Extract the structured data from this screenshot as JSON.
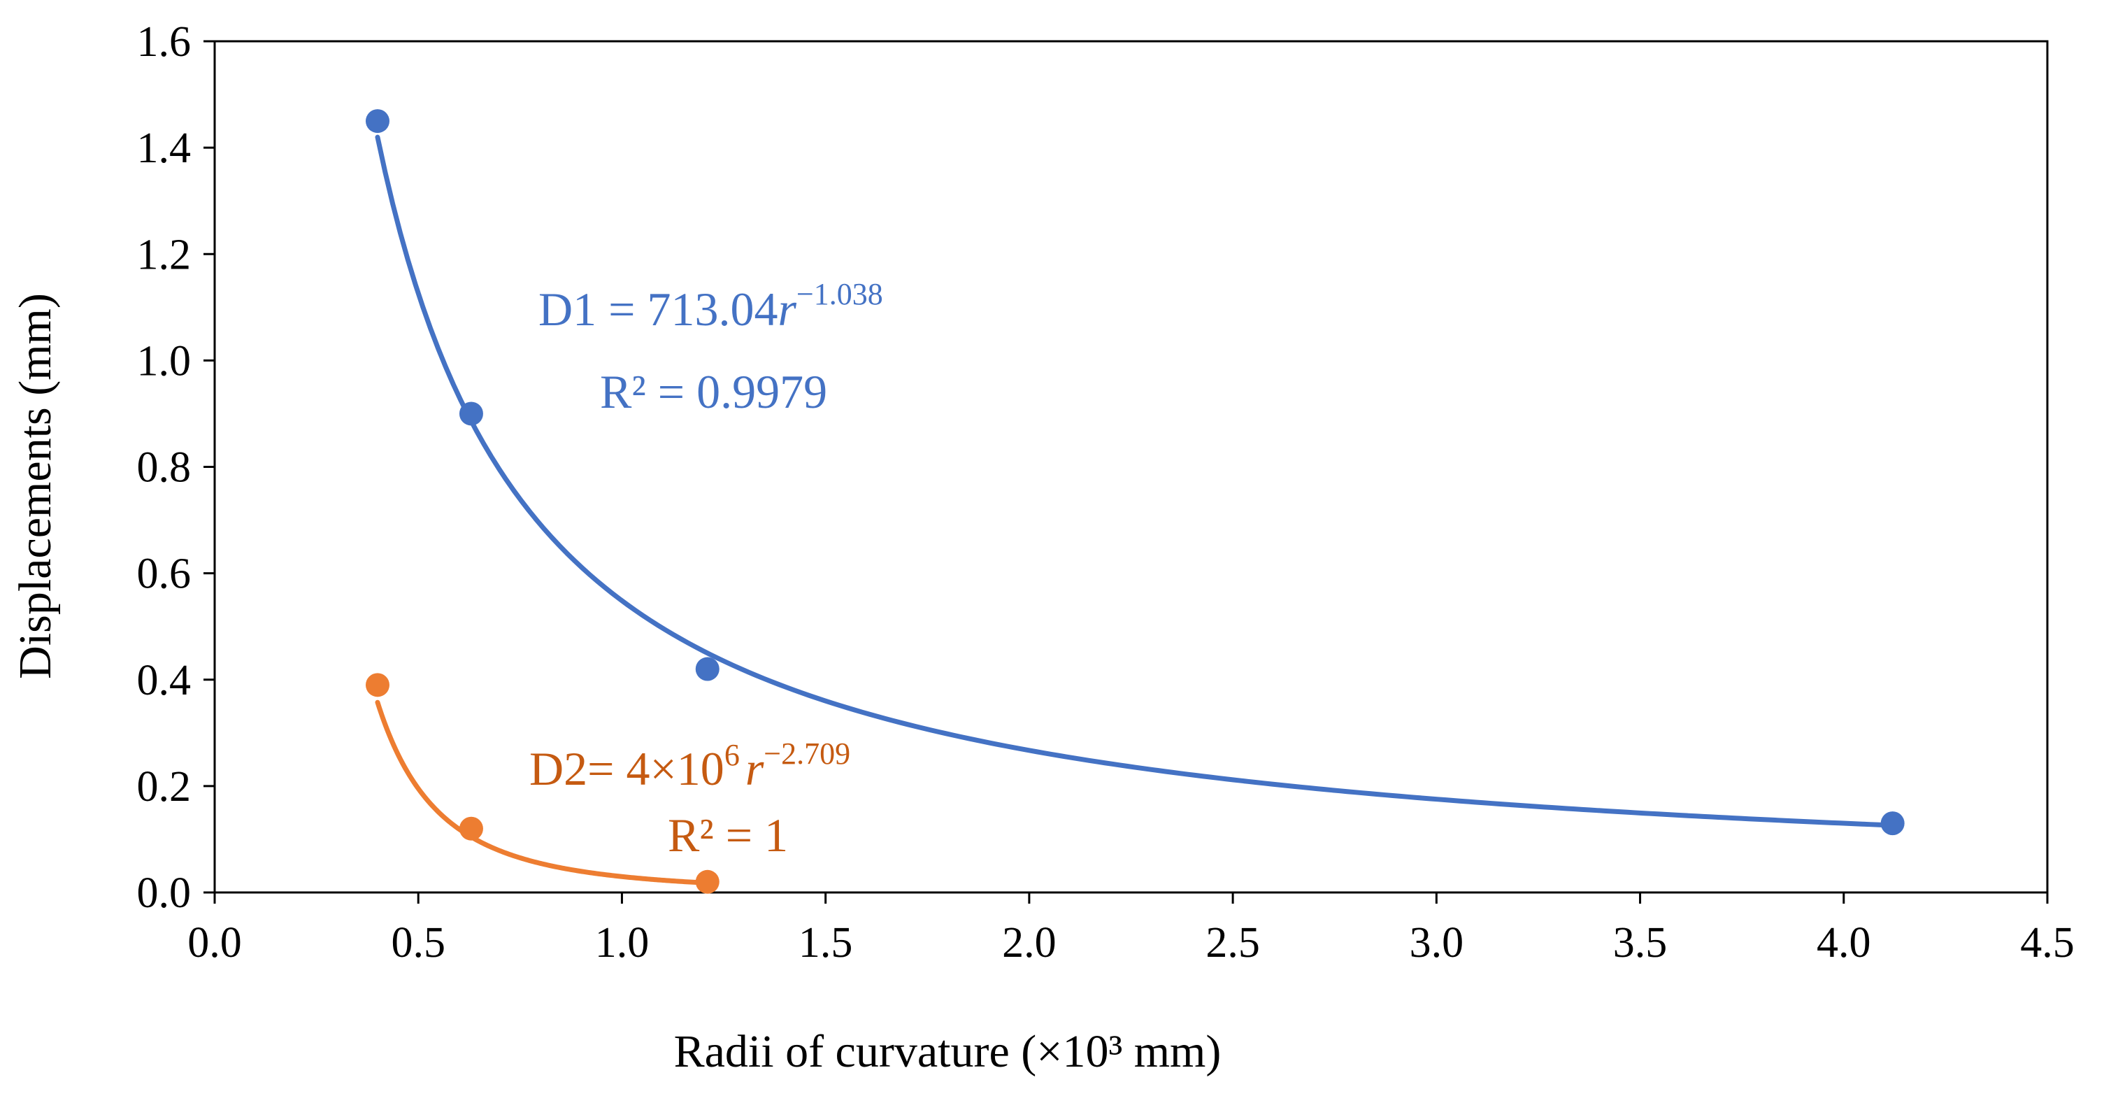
{
  "chart_data": {
    "type": "scatter",
    "xlabel": "Radii  of curvature  (×10³ mm)",
    "ylabel": "Displacements  (mm)",
    "xlim": [
      0.0,
      4.5
    ],
    "ylim": [
      0.0,
      1.6
    ],
    "xticks": [
      "0.0",
      "0.5",
      "1.0",
      "1.5",
      "2.0",
      "2.5",
      "3.0",
      "3.5",
      "4.0",
      "4.5"
    ],
    "yticks": [
      "0.0",
      "0.2",
      "0.4",
      "0.6",
      "0.8",
      "1.0",
      "1.2",
      "1.4",
      "1.6"
    ],
    "grid": false,
    "series": [
      {
        "name": "D1",
        "color": "#4472C4",
        "x": [
          0.4,
          0.63,
          1.21,
          4.12
        ],
        "y": [
          1.45,
          0.9,
          0.42,
          0.13
        ],
        "fit": {
          "type": "power",
          "coefficient": 713.04,
          "exponent": -1.038,
          "x_range": [
            0.4,
            4.12
          ],
          "equation_base": "D1 = 713.04",
          "equation_var": "r",
          "equation_exp": "−1.038",
          "r2_text": "R² = 0.9979"
        }
      },
      {
        "name": "D2",
        "color": "#ED7D31",
        "x": [
          0.4,
          0.63,
          1.21
        ],
        "y": [
          0.39,
          0.12,
          0.02
        ],
        "fit": {
          "type": "power",
          "coefficient": 4000000,
          "exponent": -2.709,
          "x_range": [
            0.4,
            1.21
          ],
          "equation_base": "D2= 4×10",
          "equation_base_sup": "6",
          "equation_var": "r",
          "equation_exp": "−2.709",
          "r2_text": "R² = 1"
        }
      }
    ],
    "annotation_colors": {
      "D1": "#4472C4",
      "D2": "#C55A11"
    }
  }
}
